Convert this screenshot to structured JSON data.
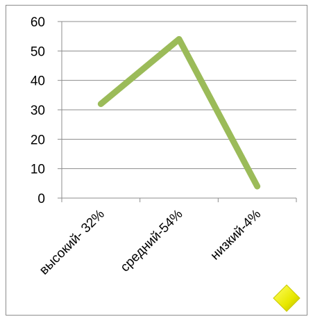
{
  "chart_data": {
    "type": "line",
    "categories": [
      "высокий- 32%",
      "средний-54%",
      "низкий-4%"
    ],
    "series": [
      {
        "values": [
          32,
          54,
          4
        ],
        "color": "#9bbb59"
      }
    ],
    "ylim": [
      0,
      60
    ],
    "yticks": [
      0,
      10,
      20,
      30,
      40,
      50,
      60
    ],
    "grid": true,
    "legend": "none",
    "title": "",
    "xlabel": "",
    "ylabel": ""
  },
  "decorations": {
    "marker_icon": "yellow-diamond-icon",
    "marker_color": "#f2f200"
  }
}
